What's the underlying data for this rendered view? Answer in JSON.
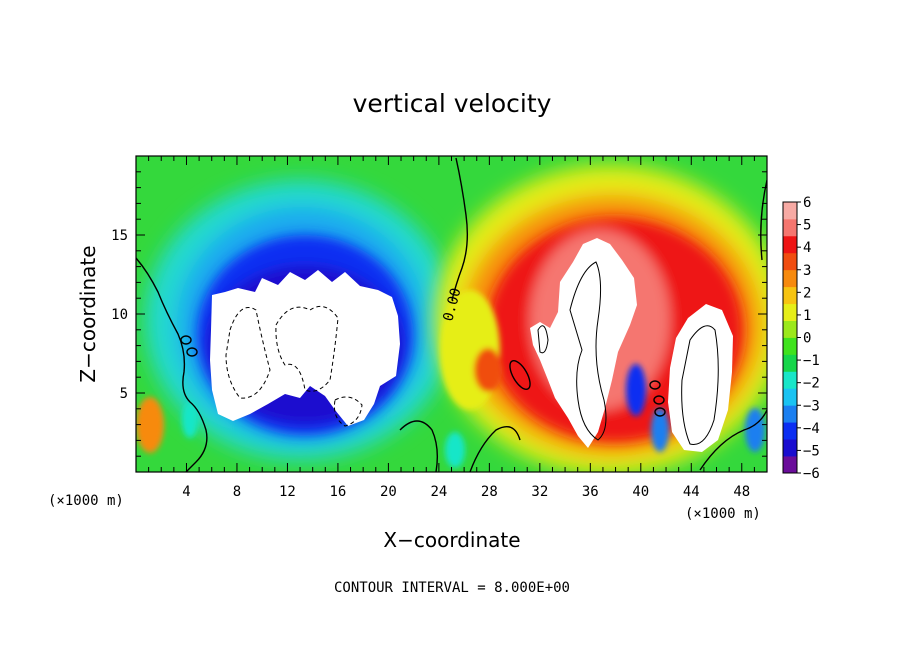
{
  "chart_data": {
    "type": "heatmap",
    "title": "vertical velocity",
    "xlabel": "X−coordinate",
    "ylabel": "Z−coordinate",
    "x_unit_left": "(×1000 m)",
    "x_unit_right": "(×1000 m)",
    "footer": "CONTOUR INTERVAL = 8.000E+00",
    "xlim": [
      0,
      50
    ],
    "ylim": [
      0,
      20
    ],
    "x_ticks": [
      4,
      8,
      12,
      16,
      20,
      24,
      28,
      32,
      36,
      40,
      44,
      48
    ],
    "x_tick_labels": [
      "4",
      "8",
      "12",
      "16",
      "20",
      "24",
      "28",
      "32",
      "36",
      "40",
      "44",
      "48"
    ],
    "y_ticks": [
      5,
      10,
      15
    ],
    "y_tick_labels": [
      "5",
      "10",
      "15"
    ],
    "contour_label": "0.00",
    "colorbar": {
      "range": [
        -6,
        6
      ],
      "tick_values": [
        6,
        5,
        4,
        3,
        2,
        1,
        0,
        -1,
        -2,
        -3,
        -4,
        -5,
        -6
      ],
      "tick_labels": [
        "6",
        "5",
        "4",
        "3",
        "2",
        "1",
        "0",
        "−1",
        "−2",
        "−3",
        "−4",
        "−5",
        "−6"
      ],
      "colors": [
        "#6a0d9a",
        "#1a0dcf",
        "#0b2ef2",
        "#1b7ff0",
        "#1ac3f2",
        "#18e6c8",
        "#16d64a",
        "#3fe21d",
        "#9be81b",
        "#e6ee19",
        "#f7c412",
        "#f78a0e",
        "#f04d10",
        "#ee1414",
        "#f5766f",
        "#f7aaa4"
      ]
    },
    "features": {
      "updraft_cores": [
        {
          "x": [
            33,
            40
          ],
          "z": [
            1,
            15
          ]
        },
        {
          "x": [
            41,
            46
          ],
          "z": [
            1,
            10
          ]
        }
      ],
      "downdraft_core": {
        "x": [
          6,
          21
        ],
        "z": [
          2,
          12
        ]
      }
    }
  }
}
